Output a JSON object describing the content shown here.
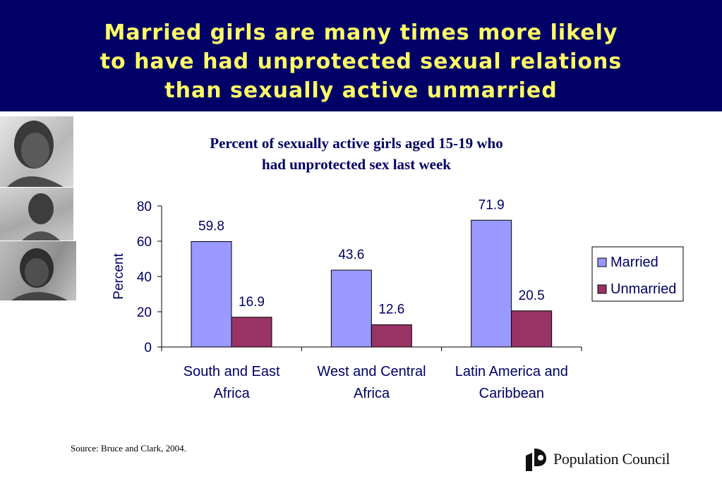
{
  "slide": {
    "title": "Married girls are many times more likely\nto have had unprotected sexual relations\nthan sexually active unmarried"
  },
  "chart_data": {
    "type": "bar",
    "title": "Percent of sexually active girls aged 15-19 who\nhad unprotected sex last week",
    "categories": [
      [
        "South and East",
        "Africa"
      ],
      [
        "West and Central",
        "Africa"
      ],
      [
        "Latin America and",
        "Caribbean"
      ]
    ],
    "series": [
      {
        "name": "Married",
        "values": [
          59.8,
          43.6,
          71.9
        ],
        "color": "#9999ff"
      },
      {
        "name": "Unmarried",
        "values": [
          16.9,
          12.6,
          20.5
        ],
        "color": "#993366"
      }
    ],
    "ylabel": "Percent",
    "ylim": [
      0,
      80
    ],
    "yticks": [
      0,
      20,
      40,
      60,
      80
    ],
    "value_labels": [
      "59.8",
      "16.9",
      "43.6",
      "12.6",
      "71.9",
      "20.5"
    ],
    "grid": false,
    "legend_position": "right"
  },
  "footer": {
    "source": "Source:  Bruce and Clark, 2004.",
    "logo_text": "Population Council"
  },
  "colors": {
    "header_bg": "#000066",
    "header_text": "#ffff66",
    "axis_text": "#000066"
  }
}
